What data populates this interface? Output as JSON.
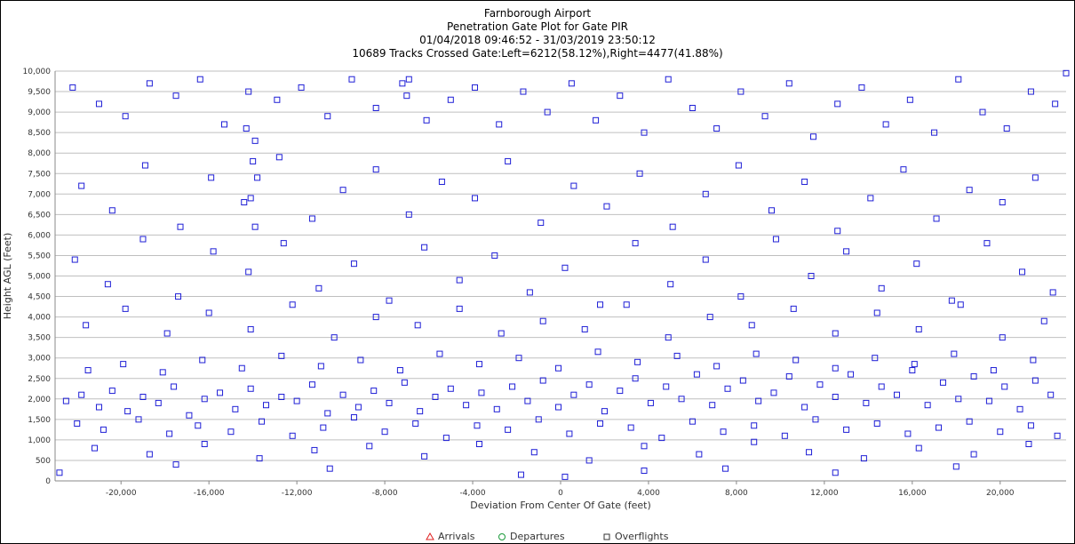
{
  "header": {
    "title": "Farnborough Airport",
    "subtitle": "Penetration Gate Plot for Gate PIR",
    "date_range": "01/04/2018 09:46:52 - 31/03/2019 23:50:12",
    "summary": "10689 Tracks Crossed Gate:Left=6212(58.12%),Right=4477(41.88%)"
  },
  "colors": {
    "overflights": "#1f1fd6",
    "arrivals": "#e02020",
    "departures": "#1a9a3a",
    "grid": "#bfbfbf"
  },
  "chart_data": {
    "type": "scatter",
    "title": "Farnborough Airport",
    "xlabel": "Deviation From Center Of Gate (feet)",
    "ylabel": "Height AGL (Feet)",
    "xlim": [
      -23000,
      23000
    ],
    "ylim": [
      0,
      10000
    ],
    "x_ticks": [
      -20000,
      -16000,
      -12000,
      -8000,
      -4000,
      0,
      4000,
      8000,
      12000,
      16000,
      20000
    ],
    "x_tick_labels": [
      "-20,000",
      "-16,000",
      "-12,000",
      "-8,000",
      "-4,000",
      "0",
      "4,000",
      "8,000",
      "12,000",
      "16,000",
      "20,000"
    ],
    "y_ticks": [
      0,
      500,
      1000,
      1500,
      2000,
      2500,
      3000,
      3500,
      4000,
      4500,
      5000,
      5500,
      6000,
      6500,
      7000,
      7500,
      8000,
      8500,
      9000,
      9500,
      10000
    ],
    "y_tick_labels": [
      "0",
      "500",
      "1,000",
      "1,500",
      "2,000",
      "2,500",
      "3,000",
      "3,500",
      "4,000",
      "4,500",
      "5,000",
      "5,500",
      "6,000",
      "6,500",
      "7,000",
      "7,500",
      "8,000",
      "8,500",
      "9,000",
      "9,500",
      "10,000"
    ],
    "grid": "horizontal",
    "legend_placement": "bottom-center",
    "legend": [
      {
        "label": "Arrivals",
        "marker": "triangle"
      },
      {
        "label": "Departures",
        "marker": "circle"
      },
      {
        "label": "Overflights",
        "marker": "square"
      }
    ],
    "series": [
      {
        "name": "Overflights",
        "marker": "square",
        "points": [
          [
            -22500,
            1950
          ],
          [
            -21800,
            2100
          ],
          [
            -21000,
            1800
          ],
          [
            -20400,
            2200
          ],
          [
            -19700,
            1700
          ],
          [
            -19000,
            2050
          ],
          [
            -18300,
            1900
          ],
          [
            -17600,
            2300
          ],
          [
            -16900,
            1600
          ],
          [
            -16200,
            2000
          ],
          [
            -15500,
            2150
          ],
          [
            -14800,
            1750
          ],
          [
            -14100,
            2250
          ],
          [
            -13400,
            1850
          ],
          [
            -12700,
            2050
          ],
          [
            -12000,
            1950
          ],
          [
            -11300,
            2350
          ],
          [
            -10600,
            1650
          ],
          [
            -9900,
            2100
          ],
          [
            -9200,
            1800
          ],
          [
            -8500,
            2200
          ],
          [
            -7800,
            1900
          ],
          [
            -7100,
            2400
          ],
          [
            -6400,
            1700
          ],
          [
            -5700,
            2050
          ],
          [
            -5000,
            2250
          ],
          [
            -4300,
            1850
          ],
          [
            -3600,
            2150
          ],
          [
            -2900,
            1750
          ],
          [
            -2200,
            2300
          ],
          [
            -1500,
            1950
          ],
          [
            -800,
            2450
          ],
          [
            -100,
            1800
          ],
          [
            600,
            2100
          ],
          [
            1300,
            2350
          ],
          [
            2000,
            1700
          ],
          [
            2700,
            2200
          ],
          [
            3400,
            2500
          ],
          [
            4100,
            1900
          ],
          [
            4800,
            2300
          ],
          [
            5500,
            2000
          ],
          [
            6200,
            2600
          ],
          [
            6900,
            1850
          ],
          [
            7600,
            2250
          ],
          [
            8300,
            2450
          ],
          [
            9000,
            1950
          ],
          [
            9700,
            2150
          ],
          [
            10400,
            2550
          ],
          [
            11100,
            1800
          ],
          [
            11800,
            2350
          ],
          [
            12500,
            2050
          ],
          [
            13200,
            2600
          ],
          [
            13900,
            1900
          ],
          [
            14600,
            2300
          ],
          [
            15300,
            2100
          ],
          [
            16000,
            2700
          ],
          [
            16700,
            1850
          ],
          [
            17400,
            2400
          ],
          [
            18100,
            2000
          ],
          [
            18800,
            2550
          ],
          [
            19500,
            1950
          ],
          [
            20200,
            2300
          ],
          [
            20900,
            1750
          ],
          [
            21600,
            2450
          ],
          [
            22300,
            2100
          ],
          [
            -22000,
            1400
          ],
          [
            -20800,
            1250
          ],
          [
            -19200,
            1500
          ],
          [
            -17800,
            1150
          ],
          [
            -16500,
            1350
          ],
          [
            -15000,
            1200
          ],
          [
            -13600,
            1450
          ],
          [
            -12200,
            1100
          ],
          [
            -10800,
            1300
          ],
          [
            -9400,
            1550
          ],
          [
            -8000,
            1200
          ],
          [
            -6600,
            1400
          ],
          [
            -5200,
            1050
          ],
          [
            -3800,
            1350
          ],
          [
            -2400,
            1250
          ],
          [
            -1000,
            1500
          ],
          [
            400,
            1150
          ],
          [
            1800,
            1400
          ],
          [
            3200,
            1300
          ],
          [
            4600,
            1050
          ],
          [
            6000,
            1450
          ],
          [
            7400,
            1200
          ],
          [
            8800,
            1350
          ],
          [
            10200,
            1100
          ],
          [
            11600,
            1500
          ],
          [
            13000,
            1250
          ],
          [
            14400,
            1400
          ],
          [
            15800,
            1150
          ],
          [
            17200,
            1300
          ],
          [
            18600,
            1450
          ],
          [
            20000,
            1200
          ],
          [
            21400,
            1350
          ],
          [
            22600,
            1100
          ],
          [
            -21500,
            2700
          ],
          [
            -19900,
            2850
          ],
          [
            -18100,
            2650
          ],
          [
            -16300,
            2950
          ],
          [
            -14500,
            2750
          ],
          [
            -12700,
            3050
          ],
          [
            -10900,
            2800
          ],
          [
            -9100,
            2950
          ],
          [
            -7300,
            2700
          ],
          [
            -5500,
            3100
          ],
          [
            -3700,
            2850
          ],
          [
            -1900,
            3000
          ],
          [
            -100,
            2750
          ],
          [
            1700,
            3150
          ],
          [
            3500,
            2900
          ],
          [
            5300,
            3050
          ],
          [
            7100,
            2800
          ],
          [
            8900,
            3100
          ],
          [
            10700,
            2950
          ],
          [
            12500,
            2750
          ],
          [
            14300,
            3000
          ],
          [
            16100,
            2850
          ],
          [
            17900,
            3100
          ],
          [
            19700,
            2700
          ],
          [
            21500,
            2950
          ],
          [
            -21200,
            800
          ],
          [
            -18700,
            650
          ],
          [
            -16200,
            900
          ],
          [
            -13700,
            550
          ],
          [
            -11200,
            750
          ],
          [
            -8700,
            850
          ],
          [
            -6200,
            600
          ],
          [
            -3700,
            900
          ],
          [
            -1200,
            700
          ],
          [
            1300,
            500
          ],
          [
            3800,
            850
          ],
          [
            6300,
            650
          ],
          [
            8800,
            950
          ],
          [
            11300,
            700
          ],
          [
            13800,
            550
          ],
          [
            16300,
            800
          ],
          [
            18800,
            650
          ],
          [
            21300,
            900
          ],
          [
            -22200,
            9600
          ],
          [
            -21000,
            9200
          ],
          [
            -19800,
            8900
          ],
          [
            -18700,
            9700
          ],
          [
            -17500,
            9400
          ],
          [
            -16400,
            9800
          ],
          [
            -15300,
            8700
          ],
          [
            -14200,
            9500
          ],
          [
            -13900,
            8300
          ],
          [
            -14000,
            7800
          ],
          [
            -13800,
            7400
          ],
          [
            -14100,
            6900
          ],
          [
            -13900,
            6200
          ],
          [
            -14300,
            8600
          ],
          [
            -12900,
            9300
          ],
          [
            -11800,
            9600
          ],
          [
            -10600,
            8900
          ],
          [
            -9500,
            9800
          ],
          [
            -8400,
            9100
          ],
          [
            -7200,
            9700
          ],
          [
            -7000,
            9400
          ],
          [
            -6900,
            9800
          ],
          [
            -6100,
            8800
          ],
          [
            -5000,
            9300
          ],
          [
            -3900,
            9600
          ],
          [
            -2800,
            8700
          ],
          [
            -1700,
            9500
          ],
          [
            -600,
            9000
          ],
          [
            500,
            9700
          ],
          [
            1600,
            8800
          ],
          [
            2700,
            9400
          ],
          [
            3800,
            8500
          ],
          [
            4900,
            9800
          ],
          [
            6000,
            9100
          ],
          [
            7100,
            8600
          ],
          [
            8200,
            9500
          ],
          [
            9300,
            8900
          ],
          [
            10400,
            9700
          ],
          [
            11500,
            8400
          ],
          [
            12600,
            9200
          ],
          [
            13700,
            9600
          ],
          [
            14800,
            8700
          ],
          [
            15900,
            9300
          ],
          [
            17000,
            8500
          ],
          [
            18100,
            9800
          ],
          [
            19200,
            9000
          ],
          [
            20300,
            8600
          ],
          [
            21400,
            9500
          ],
          [
            22500,
            9200
          ],
          [
            -21800,
            7200
          ],
          [
            -20400,
            6600
          ],
          [
            -18900,
            7700
          ],
          [
            -17300,
            6200
          ],
          [
            -15900,
            7400
          ],
          [
            -14400,
            6800
          ],
          [
            -12800,
            7900
          ],
          [
            -11300,
            6400
          ],
          [
            -9900,
            7100
          ],
          [
            -8400,
            7600
          ],
          [
            -6900,
            6500
          ],
          [
            -5400,
            7300
          ],
          [
            -3900,
            6900
          ],
          [
            -2400,
            7800
          ],
          [
            -900,
            6300
          ],
          [
            600,
            7200
          ],
          [
            2100,
            6700
          ],
          [
            3600,
            7500
          ],
          [
            5100,
            6200
          ],
          [
            6600,
            7000
          ],
          [
            8100,
            7700
          ],
          [
            9600,
            6600
          ],
          [
            11100,
            7300
          ],
          [
            12600,
            6100
          ],
          [
            14100,
            6900
          ],
          [
            15600,
            7600
          ],
          [
            17100,
            6400
          ],
          [
            18600,
            7100
          ],
          [
            20100,
            6800
          ],
          [
            21600,
            7400
          ],
          [
            -22100,
            5400
          ],
          [
            -20600,
            4800
          ],
          [
            -19000,
            5900
          ],
          [
            -17400,
            4500
          ],
          [
            -15800,
            5600
          ],
          [
            -14200,
            5100
          ],
          [
            -12600,
            5800
          ],
          [
            -11000,
            4700
          ],
          [
            -9400,
            5300
          ],
          [
            -7800,
            4400
          ],
          [
            -6200,
            5700
          ],
          [
            -4600,
            4900
          ],
          [
            -3000,
            5500
          ],
          [
            -1400,
            4600
          ],
          [
            200,
            5200
          ],
          [
            1800,
            4300
          ],
          [
            3400,
            5800
          ],
          [
            5000,
            4800
          ],
          [
            6600,
            5400
          ],
          [
            8200,
            4500
          ],
          [
            9800,
            5900
          ],
          [
            11400,
            5000
          ],
          [
            13000,
            5600
          ],
          [
            14600,
            4700
          ],
          [
            16200,
            5300
          ],
          [
            17800,
            4400
          ],
          [
            19400,
            5800
          ],
          [
            21000,
            5100
          ],
          [
            22400,
            4600
          ],
          [
            -21600,
            3800
          ],
          [
            -19800,
            4200
          ],
          [
            -17900,
            3600
          ],
          [
            -16000,
            4100
          ],
          [
            -14100,
            3700
          ],
          [
            -12200,
            4300
          ],
          [
            -10300,
            3500
          ],
          [
            -8400,
            4000
          ],
          [
            -6500,
            3800
          ],
          [
            -4600,
            4200
          ],
          [
            -2700,
            3600
          ],
          [
            -800,
            3900
          ],
          [
            1100,
            3700
          ],
          [
            3000,
            4300
          ],
          [
            4900,
            3500
          ],
          [
            6800,
            4000
          ],
          [
            8700,
            3800
          ],
          [
            10600,
            4200
          ],
          [
            12500,
            3600
          ],
          [
            14400,
            4100
          ],
          [
            16300,
            3700
          ],
          [
            18200,
            4300
          ],
          [
            20100,
            3500
          ],
          [
            22000,
            3900
          ],
          [
            -1800,
            150
          ],
          [
            200,
            100
          ],
          [
            3800,
            250
          ],
          [
            -10500,
            300
          ],
          [
            12500,
            200
          ],
          [
            18000,
            350
          ],
          [
            -17500,
            400
          ],
          [
            7500,
            300
          ],
          [
            23000,
            9950
          ],
          [
            -22800,
            200
          ]
        ]
      }
    ]
  }
}
